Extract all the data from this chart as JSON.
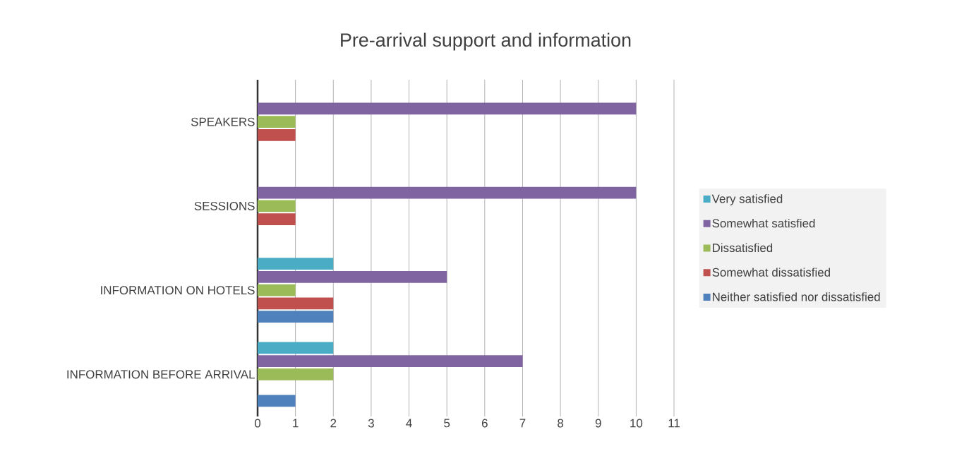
{
  "chart_data": {
    "type": "bar",
    "orientation": "horizontal",
    "title": "Pre-arrival support and information",
    "categories": [
      "SPEAKERS",
      "SESSIONS",
      "INFORMATION ON HOTELS",
      "INFORMATION BEFORE ARRIVAL"
    ],
    "series": [
      {
        "name": "Very satisfied",
        "color": "#4bacc6",
        "values": [
          null,
          null,
          2,
          2
        ]
      },
      {
        "name": "Somewhat satisfied",
        "color": "#8064a2",
        "values": [
          10,
          10,
          5,
          7
        ]
      },
      {
        "name": "Dissatisfied",
        "color": "#9bbb59",
        "values": [
          1,
          1,
          1,
          2
        ]
      },
      {
        "name": "Somewhat dissatisfied",
        "color": "#c0504d",
        "values": [
          1,
          1,
          2,
          null
        ]
      },
      {
        "name": "Neither satisfied nor dissatisfied",
        "color": "#4f81bd",
        "values": [
          null,
          null,
          2,
          1
        ]
      }
    ],
    "xlim": [
      0,
      11
    ],
    "xticks": [
      0,
      1,
      2,
      3,
      4,
      5,
      6,
      7,
      8,
      9,
      10,
      11
    ],
    "grid": "x",
    "legend": "right"
  }
}
